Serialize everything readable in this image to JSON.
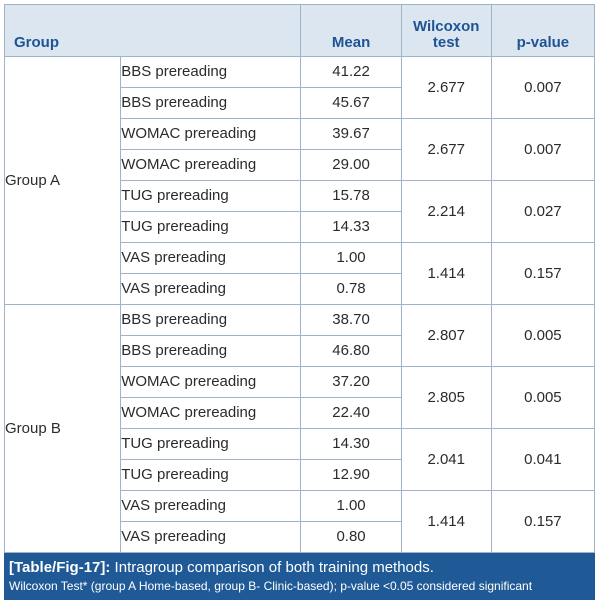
{
  "table": {
    "headers": {
      "group": "Group",
      "mean": "Mean",
      "test_line1": "Wilcoxon",
      "test_line2": "test",
      "pvalue": "p-value"
    },
    "groups": [
      {
        "name": "Group A",
        "pairs": [
          {
            "rows": [
              {
                "label": "BBS prereading",
                "mean": "41.22"
              },
              {
                "label": "BBS prereading",
                "mean": "45.67"
              }
            ],
            "test": "2.677",
            "p": "0.007"
          },
          {
            "rows": [
              {
                "label": "WOMAC prereading",
                "mean": "39.67"
              },
              {
                "label": "WOMAC prereading",
                "mean": "29.00"
              }
            ],
            "test": "2.677",
            "p": "0.007"
          },
          {
            "rows": [
              {
                "label": "TUG prereading",
                "mean": "15.78"
              },
              {
                "label": "TUG prereading",
                "mean": "14.33"
              }
            ],
            "test": "2.214",
            "p": "0.027"
          },
          {
            "rows": [
              {
                "label": "VAS prereading",
                "mean": "1.00"
              },
              {
                "label": "VAS prereading",
                "mean": "0.78"
              }
            ],
            "test": "1.414",
            "p": "0.157"
          }
        ]
      },
      {
        "name": "Group B",
        "pairs": [
          {
            "rows": [
              {
                "label": "BBS prereading",
                "mean": "38.70"
              },
              {
                "label": "BBS prereading",
                "mean": "46.80"
              }
            ],
            "test": "2.807",
            "p": "0.005"
          },
          {
            "rows": [
              {
                "label": "WOMAC prereading",
                "mean": "37.20"
              },
              {
                "label": "WOMAC prereading",
                "mean": "22.40"
              }
            ],
            "test": "2.805",
            "p": "0.005"
          },
          {
            "rows": [
              {
                "label": "TUG prereading",
                "mean": "14.30"
              },
              {
                "label": "TUG prereading",
                "mean": "12.90"
              }
            ],
            "test": "2.041",
            "p": "0.041"
          },
          {
            "rows": [
              {
                "label": "VAS prereading",
                "mean": "1.00"
              },
              {
                "label": "VAS prereading",
                "mean": "0.80"
              }
            ],
            "test": "1.414",
            "p": "0.157"
          }
        ]
      }
    ]
  },
  "caption": {
    "tag": "[Table/Fig-17]:",
    "title": " Intragroup comparison of both training methods.",
    "note": "Wilcoxon Test* (group A Home-based, group B- Clinic-based); p-value <0.05 considered significant"
  },
  "colors": {
    "header_bg": "#dce6f1",
    "header_text": "#1d5493",
    "caption_bg": "#1f5a96",
    "border": "#9fb3c8"
  }
}
